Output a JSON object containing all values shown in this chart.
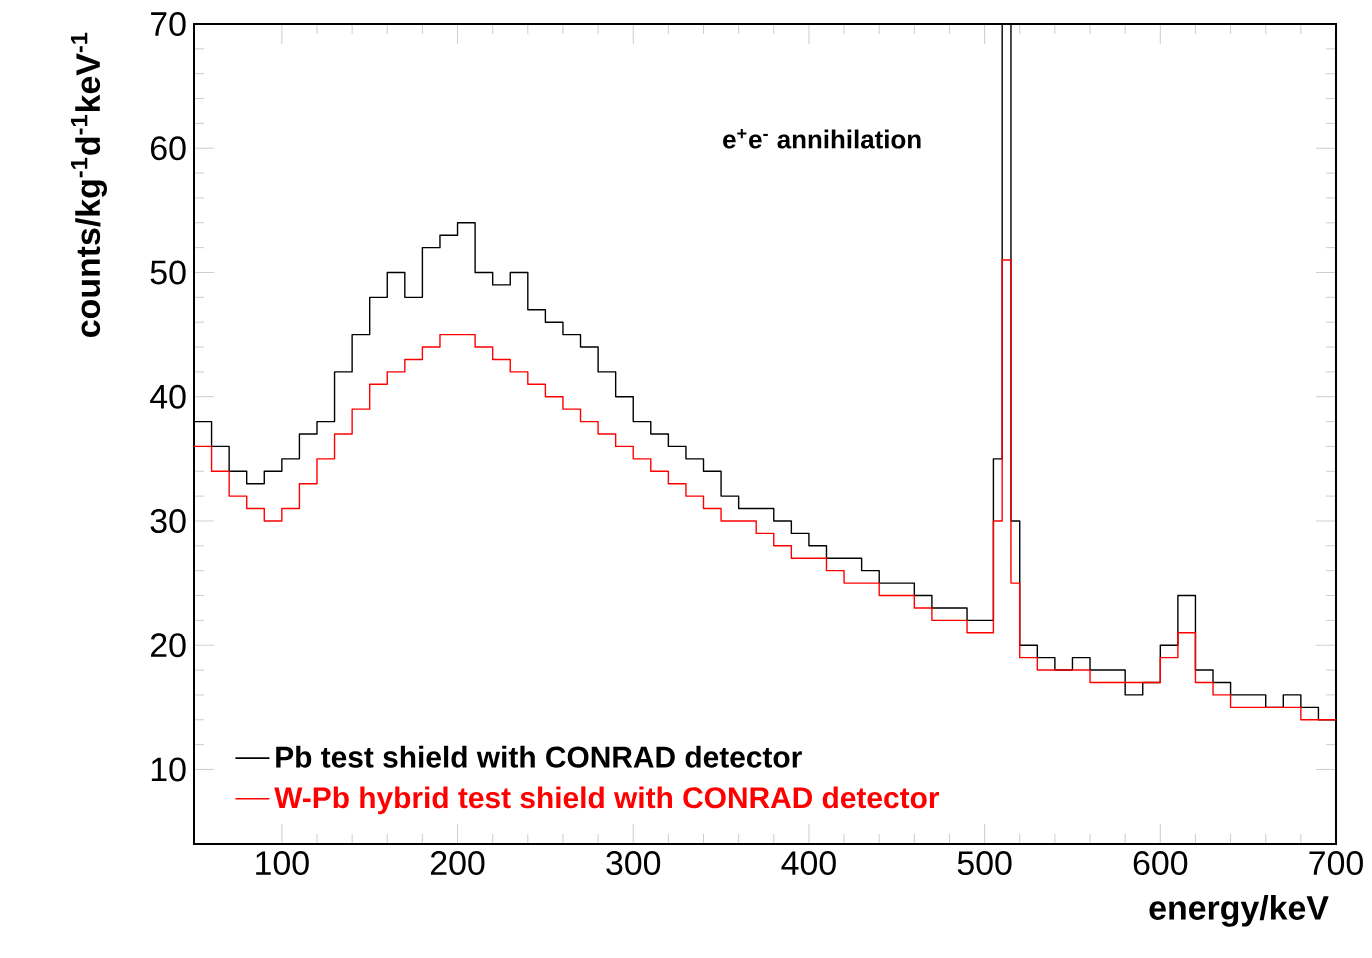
{
  "chart_data": {
    "type": "step",
    "xlabel": "energy/keV",
    "ylabel": "counts/kg$^{-1}$d$^{-1}$keV$^{-1}$",
    "annotations": [
      "e$^{+}$e$^{-}$ annihilation"
    ],
    "xlim": [
      50,
      700
    ],
    "ylim": [
      4,
      70
    ],
    "xticks": [
      100,
      200,
      300,
      400,
      500,
      600,
      700
    ],
    "yticks": [
      10,
      20,
      30,
      40,
      50,
      60,
      70
    ],
    "legend": "bottom left",
    "grid": false,
    "series": [
      {
        "name": "Pb test shield with CONRAD detector",
        "color": "#000000",
        "x": [
          50,
          60,
          70,
          80,
          90,
          100,
          110,
          120,
          130,
          140,
          150,
          160,
          170,
          180,
          190,
          200,
          210,
          220,
          230,
          240,
          250,
          260,
          270,
          280,
          290,
          300,
          310,
          320,
          330,
          340,
          350,
          360,
          370,
          380,
          390,
          400,
          410,
          420,
          430,
          440,
          450,
          460,
          470,
          480,
          490,
          500,
          505,
          510,
          515,
          520,
          530,
          540,
          550,
          560,
          570,
          580,
          590,
          600,
          610,
          620,
          630,
          640,
          650,
          660,
          670,
          680,
          690,
          700
        ],
        "values": [
          38,
          36,
          34,
          33,
          34,
          35,
          37,
          38,
          42,
          45,
          48,
          50,
          48,
          52,
          53,
          54,
          50,
          49,
          50,
          47,
          46,
          45,
          44,
          42,
          40,
          38,
          37,
          36,
          35,
          34,
          32,
          31,
          31,
          30,
          29,
          28,
          27,
          27,
          26,
          25,
          25,
          24,
          23,
          23,
          22,
          22,
          35,
          70,
          30,
          20,
          19,
          18,
          19,
          18,
          18,
          16,
          17,
          20,
          24,
          18,
          17,
          16,
          16,
          15,
          16,
          15,
          14,
          14
        ]
      },
      {
        "name": "W-Pb hybrid test shield with CONRAD detector",
        "color": "#ff0000",
        "x": [
          50,
          60,
          70,
          80,
          90,
          100,
          110,
          120,
          130,
          140,
          150,
          160,
          170,
          180,
          190,
          200,
          210,
          220,
          230,
          240,
          250,
          260,
          270,
          280,
          290,
          300,
          310,
          320,
          330,
          340,
          350,
          360,
          370,
          380,
          390,
          400,
          410,
          420,
          430,
          440,
          450,
          460,
          470,
          480,
          490,
          500,
          505,
          510,
          515,
          520,
          530,
          540,
          550,
          560,
          570,
          580,
          590,
          600,
          610,
          620,
          630,
          640,
          650,
          660,
          670,
          680,
          690,
          700
        ],
        "values": [
          36,
          34,
          32,
          31,
          30,
          31,
          33,
          35,
          37,
          39,
          41,
          42,
          43,
          44,
          45,
          45,
          44,
          43,
          42,
          41,
          40,
          39,
          38,
          37,
          36,
          35,
          34,
          33,
          32,
          31,
          30,
          30,
          29,
          28,
          27,
          27,
          26,
          25,
          25,
          24,
          24,
          23,
          22,
          22,
          21,
          21,
          30,
          51,
          25,
          19,
          18,
          18,
          18,
          17,
          17,
          17,
          17,
          19,
          21,
          17,
          16,
          15,
          15,
          15,
          15,
          14,
          14,
          14
        ]
      }
    ]
  }
}
